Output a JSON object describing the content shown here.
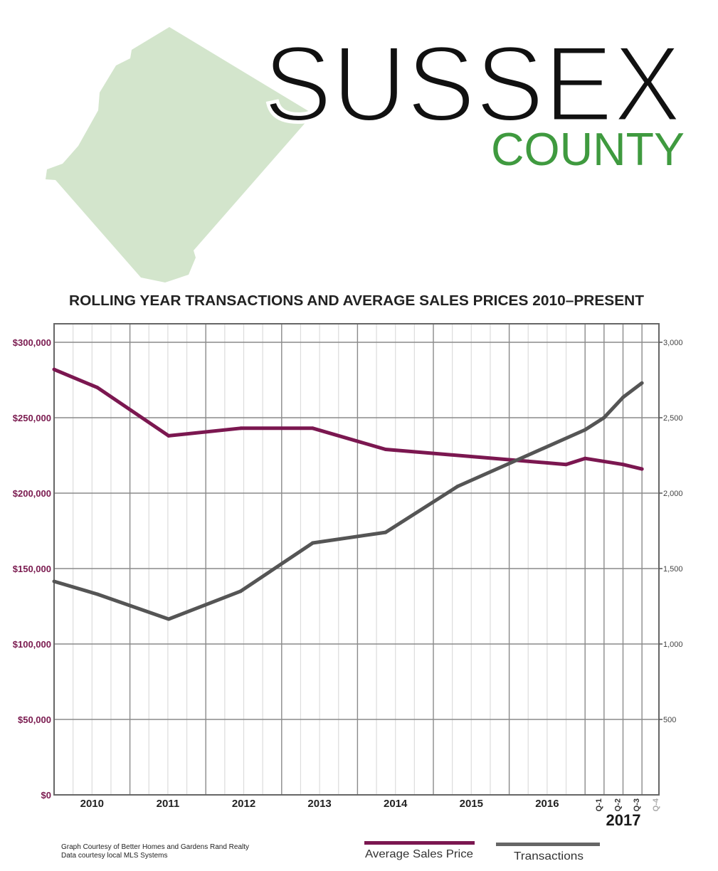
{
  "header": {
    "county_name": "SUSSEX",
    "county_word": "COUNTY",
    "map_color": "#d3e5cc",
    "accent_green": "#3f9a3f"
  },
  "chart_data": {
    "type": "line",
    "title": "ROLLING YEAR TRANSACTIONS AND AVERAGE SALES PRICES 2010–PRESENT",
    "x_tick_labels": [
      "2010",
      "2011",
      "2012",
      "2013",
      "2014",
      "2015",
      "2016"
    ],
    "quarter_labels": [
      "Q-1",
      "Q-2",
      "Q-3",
      "Q-4"
    ],
    "quarter_year_label": "2017",
    "xlim": [
      2010,
      2018
    ],
    "left_axis": {
      "ylim": [
        0,
        300000
      ],
      "tick_labels": [
        "$0",
        "$50,000",
        "$100,000",
        "$150,000",
        "$200,000",
        "$250,000",
        "$300,000"
      ],
      "color": "#7a1a4f"
    },
    "right_axis": {
      "ylim": [
        0,
        3000
      ],
      "tick_labels": [
        "500",
        "1,000",
        "1,500",
        "2,000",
        "2,500",
        "3,000"
      ]
    },
    "grid": true,
    "legend_placement": "bottom",
    "series": [
      {
        "name": "Average Sales Price",
        "axis": "left",
        "color": "#7b1750",
        "x": [
          2010.0,
          2010.57,
          2011.51,
          2012.46,
          2013.41,
          2014.37,
          2016.75,
          2017.0,
          2017.5,
          2017.75
        ],
        "y": [
          282000,
          270000,
          238000,
          243000,
          243000,
          229000,
          219000,
          223000,
          219000,
          216000
        ]
      },
      {
        "name": "Transactions",
        "axis": "right",
        "color": "#555555",
        "x": [
          2010.0,
          2010.57,
          2011.51,
          2012.46,
          2013.41,
          2014.37,
          2015.32,
          2017.0,
          2017.25,
          2017.5,
          2017.75
        ],
        "y": [
          1415,
          1330,
          1165,
          1350,
          1670,
          1740,
          2045,
          2420,
          2500,
          2635,
          2730
        ]
      }
    ]
  },
  "footer": {
    "credit_line_1": "Graph Courtesy of Better Homes and Gardens Rand Realty",
    "credit_line_2": "Data courtesy local MLS Systems"
  }
}
